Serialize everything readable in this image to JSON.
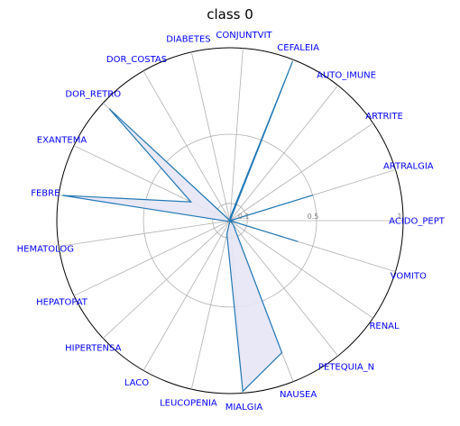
{
  "chart_data": {
    "type": "radar",
    "title": "class 0",
    "categories": [
      "ACIDO_PEPT",
      "ARTRALGIA",
      "ARTRITE",
      "AUTO_IMUNE",
      "CEFALEIA",
      "CONJUNTVIT",
      "DIABETES",
      "DOR_COSTAS",
      "DOR_RETRO",
      "EXANTEMA",
      "FEBRE",
      "HEMATOLOG",
      "HEPATOPAT",
      "HIPERTENSA",
      "LACO",
      "LEUCOPENIA",
      "MIALGIA",
      "NAUSEA",
      "PETEQUIA_N",
      "RENAL",
      "VOMITO"
    ],
    "series": [
      {
        "values": [
          0.0,
          0.5,
          0.0,
          0.0,
          0.99,
          0.02,
          0.0,
          0.0,
          0.95,
          0.25,
          0.98,
          0.02,
          0.0,
          0.0,
          0.0,
          0.08,
          0.99,
          0.82,
          0.03,
          0.0,
          0.41
        ]
      }
    ],
    "radial_ticks": [
      "0.1",
      "0.5",
      "1"
    ],
    "radial_tick_values": [
      0.1,
      0.5,
      1.0
    ],
    "rlim": [
      0,
      1
    ],
    "grid": true,
    "colors": {
      "line": "#1f77b4",
      "fill": "#e6e6f5",
      "labels": "#0000ff",
      "grid": "#b0b0b0",
      "tick": "#808080"
    }
  }
}
